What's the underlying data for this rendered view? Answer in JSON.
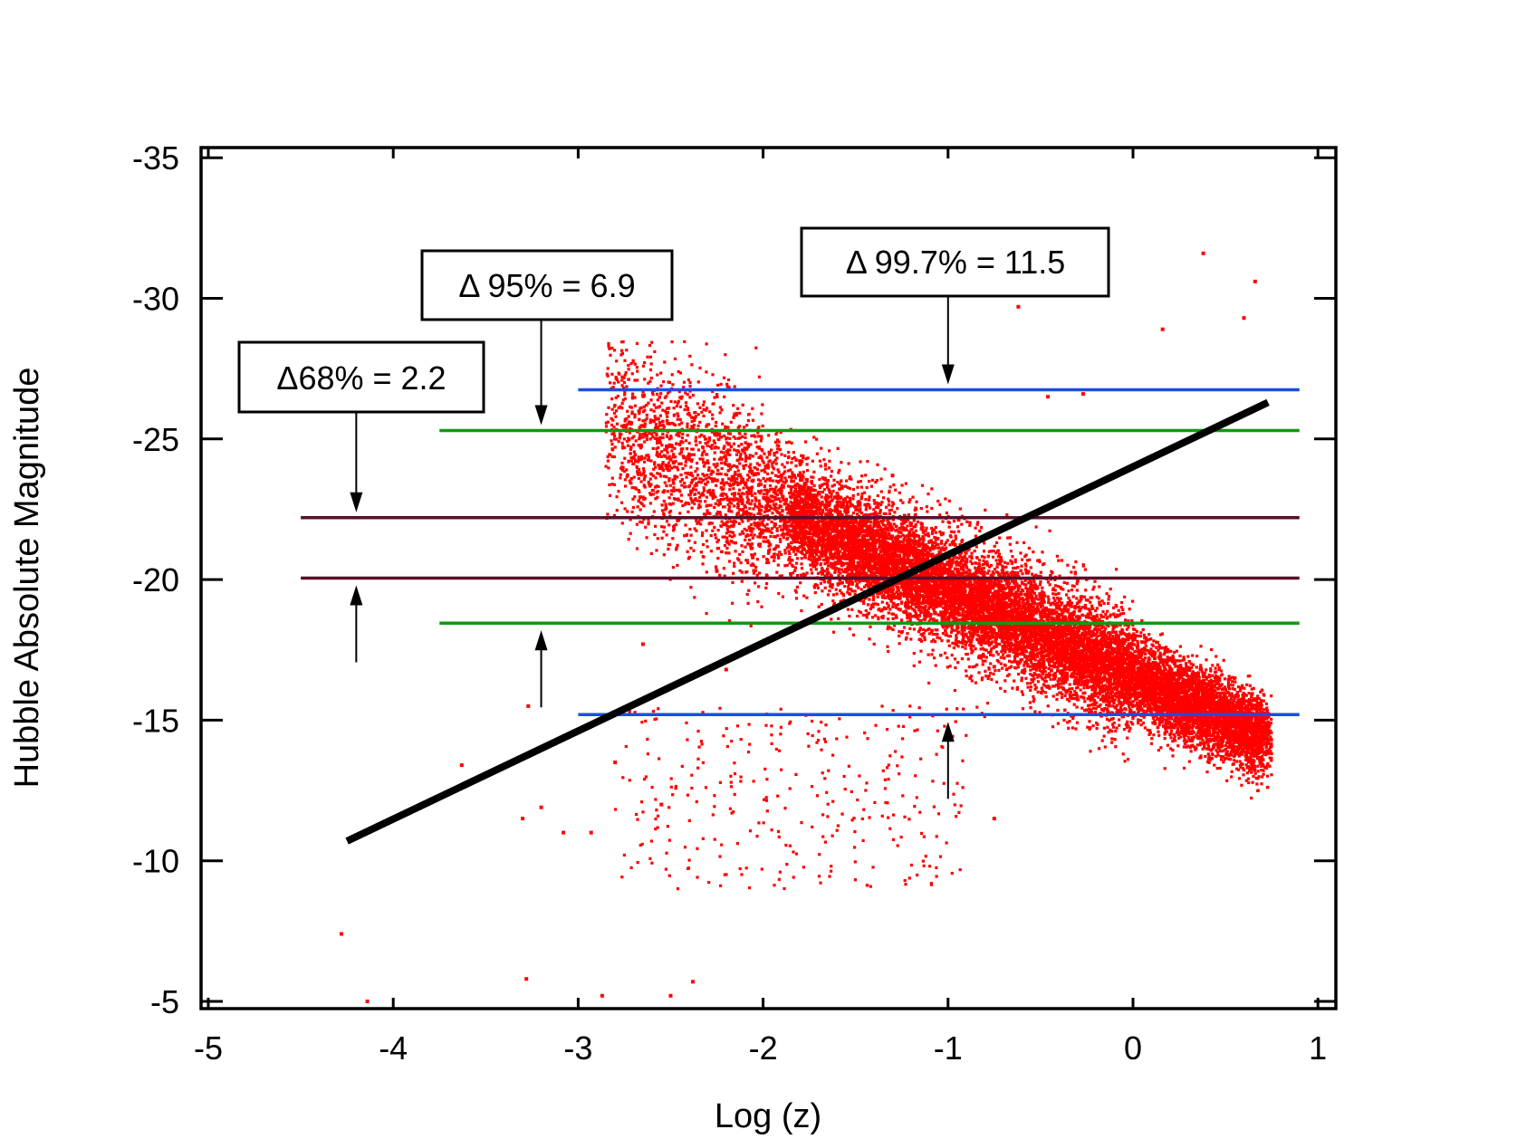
{
  "chart_data": {
    "type": "scatter",
    "title": "",
    "xlabel": "Log (z)",
    "ylabel": "Hubble Absolute Magnitude",
    "xlim": [
      -5,
      1
    ],
    "ylim": [
      -4.7,
      -35.5
    ],
    "y_inverted": true,
    "grid": false,
    "legend": "none",
    "xticks": [
      -5,
      -4,
      -3,
      -2,
      -1,
      0,
      1
    ],
    "xtick_labels": [
      "-5",
      "-4",
      "-3",
      "-2",
      "-1",
      "0",
      "1"
    ],
    "yticks": [
      -5,
      -10,
      -15,
      -20,
      -25,
      -30,
      -35
    ],
    "ytick_labels": [
      "-5",
      "-10",
      "-15",
      "-20",
      "-25",
      "-30",
      "-35"
    ],
    "colors": {
      "points": "#ff0000",
      "fit_line": "#000000",
      "band_68": "#5a0f2a",
      "band_95": "#119911",
      "band_997": "#1a4fe0"
    },
    "series": [
      {
        "kind": "scatter-cloud",
        "color": "#ff0000",
        "points": [
          [
            -4.28,
            -7.4
          ],
          [
            -4.14,
            -5.0
          ],
          [
            -3.28,
            -5.8
          ],
          [
            -2.87,
            -5.2
          ],
          [
            -2.5,
            -5.2
          ],
          [
            -2.38,
            -5.7
          ],
          [
            -3.63,
            -13.4
          ],
          [
            -3.27,
            -15.5
          ],
          [
            -3.3,
            -11.5
          ],
          [
            -3.2,
            -11.9
          ],
          [
            -3.08,
            -11.0
          ],
          [
            -2.93,
            -11.0
          ],
          [
            -0.88,
            -16.5
          ],
          [
            -0.75,
            -11.5
          ],
          [
            -0.62,
            -29.7
          ],
          [
            -0.46,
            -26.5
          ],
          [
            -0.27,
            -26.6
          ],
          [
            0.38,
            -31.6
          ],
          [
            0.66,
            -30.6
          ],
          [
            0.6,
            -29.3
          ],
          [
            0.16,
            -28.9
          ],
          [
            -2.65,
            -17.7
          ],
          [
            -2.25,
            -20.3
          ],
          [
            -1.3,
            -23.7
          ],
          [
            -0.75,
            -16.9
          ],
          [
            -0.55,
            -19.8
          ],
          [
            -0.35,
            -18.2
          ],
          [
            -2.8,
            -13.5
          ],
          [
            -2.55,
            -12.0
          ],
          [
            -2.2,
            -16.8
          ]
        ]
      },
      {
        "name": "",
        "kind": "fit-line",
        "color": "#000000",
        "x": [
          -4.25,
          0.73
        ],
        "y": [
          -10.7,
          -26.3
        ]
      }
    ],
    "reference_lines": [
      {
        "group": "68",
        "y": -22.2,
        "x_range": [
          -4.5,
          0.9
        ],
        "color": "#5a0f2a"
      },
      {
        "group": "68",
        "y": -20.05,
        "x_range": [
          -4.5,
          0.9
        ],
        "color": "#5a0f2a"
      },
      {
        "group": "95",
        "y": -25.3,
        "x_range": [
          -3.75,
          0.9
        ],
        "color": "#119911"
      },
      {
        "group": "95",
        "y": -18.45,
        "x_range": [
          -3.75,
          0.9
        ],
        "color": "#119911"
      },
      {
        "group": "997",
        "y": -26.75,
        "x_range": [
          -3.0,
          0.9
        ],
        "color": "#1a4fe0"
      },
      {
        "group": "997",
        "y": -15.2,
        "x_range": [
          -3.0,
          0.9
        ],
        "color": "#1a4fe0"
      }
    ],
    "annotations": [
      {
        "text": "Δ68% = 2.2",
        "arrow_down": {
          "x": -4.2,
          "from_y": -22.2
        },
        "arrow_up": {
          "x": -4.2,
          "to_y": -20.05
        }
      },
      {
        "text": "Δ 95% = 6.9",
        "arrow_down": {
          "x": -3.2,
          "from_y": -25.3
        },
        "arrow_up": {
          "x": -3.2,
          "to_y": -18.45
        }
      },
      {
        "text": "Δ 99.7% = 11.5",
        "arrow_down": {
          "x": -1.0,
          "from_y": -26.75
        },
        "arrow_up": {
          "x": -1.0,
          "to_y": -15.2
        }
      }
    ]
  }
}
